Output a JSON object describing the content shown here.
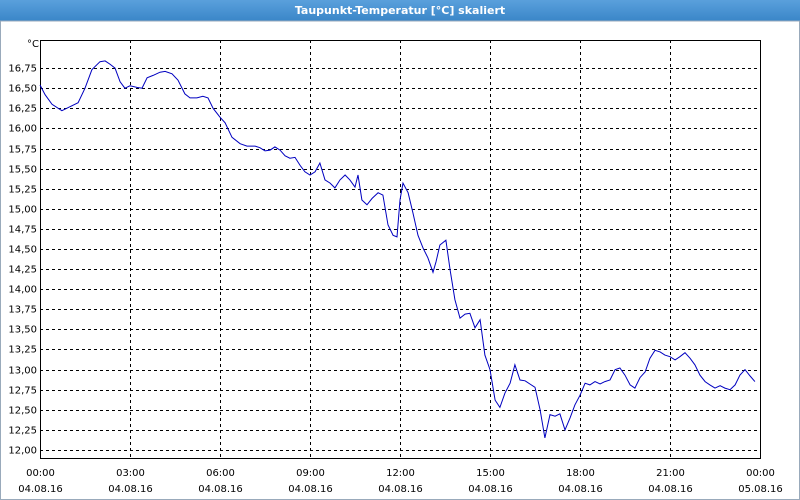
{
  "chart_data": {
    "type": "line",
    "title": "Taupunkt-Temperatur [°C] skaliert",
    "y_unit": "°C",
    "xlim": [
      0,
      24
    ],
    "ylim": [
      11.9,
      17.1
    ],
    "grid": true,
    "xticks": [
      {
        "value": 0,
        "label": "00:00",
        "date": "04.08.16"
      },
      {
        "value": 3,
        "label": "03:00",
        "date": "04.08.16"
      },
      {
        "value": 6,
        "label": "06:00",
        "date": "04.08.16"
      },
      {
        "value": 9,
        "label": "09:00",
        "date": "04.08.16"
      },
      {
        "value": 12,
        "label": "12:00",
        "date": "04.08.16"
      },
      {
        "value": 15,
        "label": "15:00",
        "date": "04.08.16"
      },
      {
        "value": 18,
        "label": "18:00",
        "date": "04.08.16"
      },
      {
        "value": 21,
        "label": "21:00",
        "date": "04.08.16"
      },
      {
        "value": 24,
        "label": "00:00",
        "date": "05.08.16"
      }
    ],
    "yticks": [
      {
        "value": 12,
        "label": "12,00"
      },
      {
        "value": 12.25,
        "label": "12,25"
      },
      {
        "value": 12.5,
        "label": "12,50"
      },
      {
        "value": 12.75,
        "label": "12,75"
      },
      {
        "value": 13,
        "label": "13,00"
      },
      {
        "value": 13.25,
        "label": "13,25"
      },
      {
        "value": 13.5,
        "label": "13,50"
      },
      {
        "value": 13.75,
        "label": "13,75"
      },
      {
        "value": 14,
        "label": "14,00"
      },
      {
        "value": 14.25,
        "label": "14,25"
      },
      {
        "value": 14.5,
        "label": "14,50"
      },
      {
        "value": 14.75,
        "label": "14,75"
      },
      {
        "value": 15,
        "label": "15,00"
      },
      {
        "value": 15.25,
        "label": "15,25"
      },
      {
        "value": 15.5,
        "label": "15,50"
      },
      {
        "value": 15.75,
        "label": "15,75"
      },
      {
        "value": 16,
        "label": "16,00"
      },
      {
        "value": 16.25,
        "label": "16,25"
      },
      {
        "value": 16.5,
        "label": "16,50"
      },
      {
        "value": 16.75,
        "label": "16,75"
      }
    ],
    "series": [
      {
        "color": "#0000c0",
        "x": [
          0,
          0.17,
          0.4,
          0.73,
          1.0,
          1.27,
          1.5,
          1.73,
          2.0,
          2.17,
          2.33,
          2.5,
          2.67,
          2.83,
          3.0,
          3.23,
          3.4,
          3.57,
          3.77,
          4.0,
          4.17,
          4.4,
          4.6,
          4.83,
          5.0,
          5.23,
          5.43,
          5.6,
          5.77,
          6.0,
          6.17,
          6.4,
          6.67,
          6.9,
          7.17,
          7.33,
          7.5,
          7.67,
          7.83,
          8.0,
          8.17,
          8.33,
          8.5,
          8.67,
          8.83,
          9.0,
          9.17,
          9.33,
          9.5,
          9.67,
          9.83,
          10.0,
          10.17,
          10.33,
          10.5,
          10.6,
          10.73,
          10.9,
          11.07,
          11.27,
          11.43,
          11.6,
          11.77,
          11.9,
          12.0,
          12.1,
          12.27,
          12.43,
          12.6,
          12.77,
          12.93,
          13.1,
          13.2,
          13.33,
          13.53,
          13.67,
          13.83,
          14.0,
          14.17,
          14.33,
          14.5,
          14.67,
          14.83,
          15.0,
          15.17,
          15.33,
          15.5,
          15.67,
          15.83,
          16.0,
          16.17,
          16.33,
          16.5,
          16.67,
          16.83,
          17.0,
          17.17,
          17.33,
          17.5,
          17.67,
          17.83,
          18.0,
          18.17,
          18.33,
          18.5,
          18.67,
          18.83,
          19.0,
          19.17,
          19.33,
          19.5,
          19.67,
          19.83,
          20.0,
          20.17,
          20.33,
          20.5,
          20.67,
          20.83,
          21.0,
          21.17,
          21.33,
          21.5,
          21.67,
          21.83,
          22.0,
          22.17,
          22.33,
          22.5,
          22.67,
          22.83,
          23.0,
          23.17,
          23.33,
          23.5,
          23.67,
          23.83
        ],
        "values": [
          16.54,
          16.42,
          16.3,
          16.22,
          16.27,
          16.32,
          16.5,
          16.73,
          16.83,
          16.84,
          16.8,
          16.75,
          16.58,
          16.5,
          16.53,
          16.51,
          16.5,
          16.63,
          16.66,
          16.7,
          16.71,
          16.68,
          16.6,
          16.43,
          16.38,
          16.38,
          16.4,
          16.38,
          16.25,
          16.14,
          16.07,
          15.89,
          15.81,
          15.78,
          15.78,
          15.76,
          15.72,
          15.73,
          15.77,
          15.73,
          15.66,
          15.63,
          15.64,
          15.54,
          15.46,
          15.42,
          15.46,
          15.57,
          15.36,
          15.32,
          15.26,
          15.36,
          15.42,
          15.36,
          15.27,
          15.42,
          15.11,
          15.05,
          15.13,
          15.2,
          15.17,
          14.8,
          14.67,
          14.65,
          15.11,
          15.32,
          15.2,
          14.95,
          14.67,
          14.51,
          14.39,
          14.21,
          14.34,
          14.55,
          14.61,
          14.24,
          13.87,
          13.64,
          13.69,
          13.7,
          13.52,
          13.62,
          13.18,
          13.0,
          12.62,
          12.53,
          12.71,
          12.83,
          13.06,
          12.87,
          12.86,
          12.82,
          12.78,
          12.5,
          12.15,
          12.44,
          12.42,
          12.45,
          12.25,
          12.4,
          12.56,
          12.68,
          12.83,
          12.81,
          12.85,
          12.82,
          12.85,
          12.87,
          13.0,
          13.02,
          12.93,
          12.81,
          12.77,
          12.9,
          12.97,
          13.14,
          13.24,
          13.22,
          13.18,
          13.16,
          13.12,
          13.16,
          13.21,
          13.14,
          13.06,
          12.93,
          12.85,
          12.81,
          12.77,
          12.8,
          12.77,
          12.75,
          12.81,
          12.93,
          13.0,
          12.92,
          12.85
        ]
      }
    ]
  }
}
